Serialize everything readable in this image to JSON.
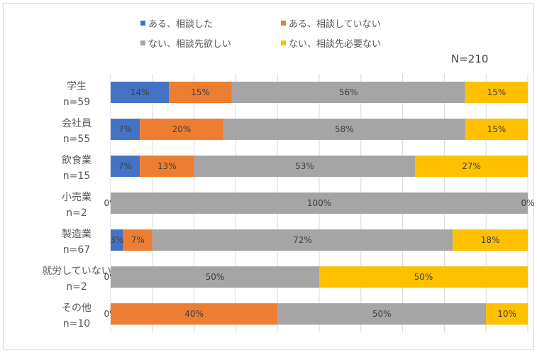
{
  "chart_data": {
    "type": "bar",
    "orientation": "horizontal",
    "stacked": "percent",
    "n_label": "N=210",
    "categories": [
      "学生",
      "会社員",
      "飲食業",
      "小売業",
      "製造業",
      "就労していない",
      "その他"
    ],
    "sublabels": [
      "n=59",
      "n=55",
      "n=15",
      "n=2",
      "n=67",
      "n=2",
      "n=10"
    ],
    "series": [
      {
        "name": "ある、相談した",
        "color": "#4472c4",
        "values": [
          14,
          7,
          7,
          0,
          3,
          0,
          0
        ],
        "labels": [
          "14%",
          "7%",
          "7%",
          "0%",
          "3%",
          "0%",
          "0%"
        ]
      },
      {
        "name": "ある、相談していない",
        "color": "#ed7d31",
        "values": [
          15,
          20,
          13,
          0,
          7,
          0,
          40
        ],
        "labels": [
          "15%",
          "20%",
          "13%",
          "",
          "7%",
          "",
          "40%"
        ]
      },
      {
        "name": "ない、相談先欲しい",
        "color": "#a5a5a5",
        "values": [
          56,
          58,
          53,
          100,
          72,
          50,
          50
        ],
        "labels": [
          "56%",
          "58%",
          "53%",
          "100%",
          "72%",
          "50%",
          "50%"
        ]
      },
      {
        "name": "ない、相談先必要ない",
        "color": "#ffc000",
        "values": [
          15,
          15,
          27,
          0,
          18,
          50,
          10
        ],
        "labels": [
          "15%",
          "15%",
          "27%",
          "0%",
          "18%",
          "50%",
          "10%"
        ]
      }
    ],
    "xlim": [
      0,
      100
    ],
    "grid": true,
    "legend_position": "top"
  }
}
